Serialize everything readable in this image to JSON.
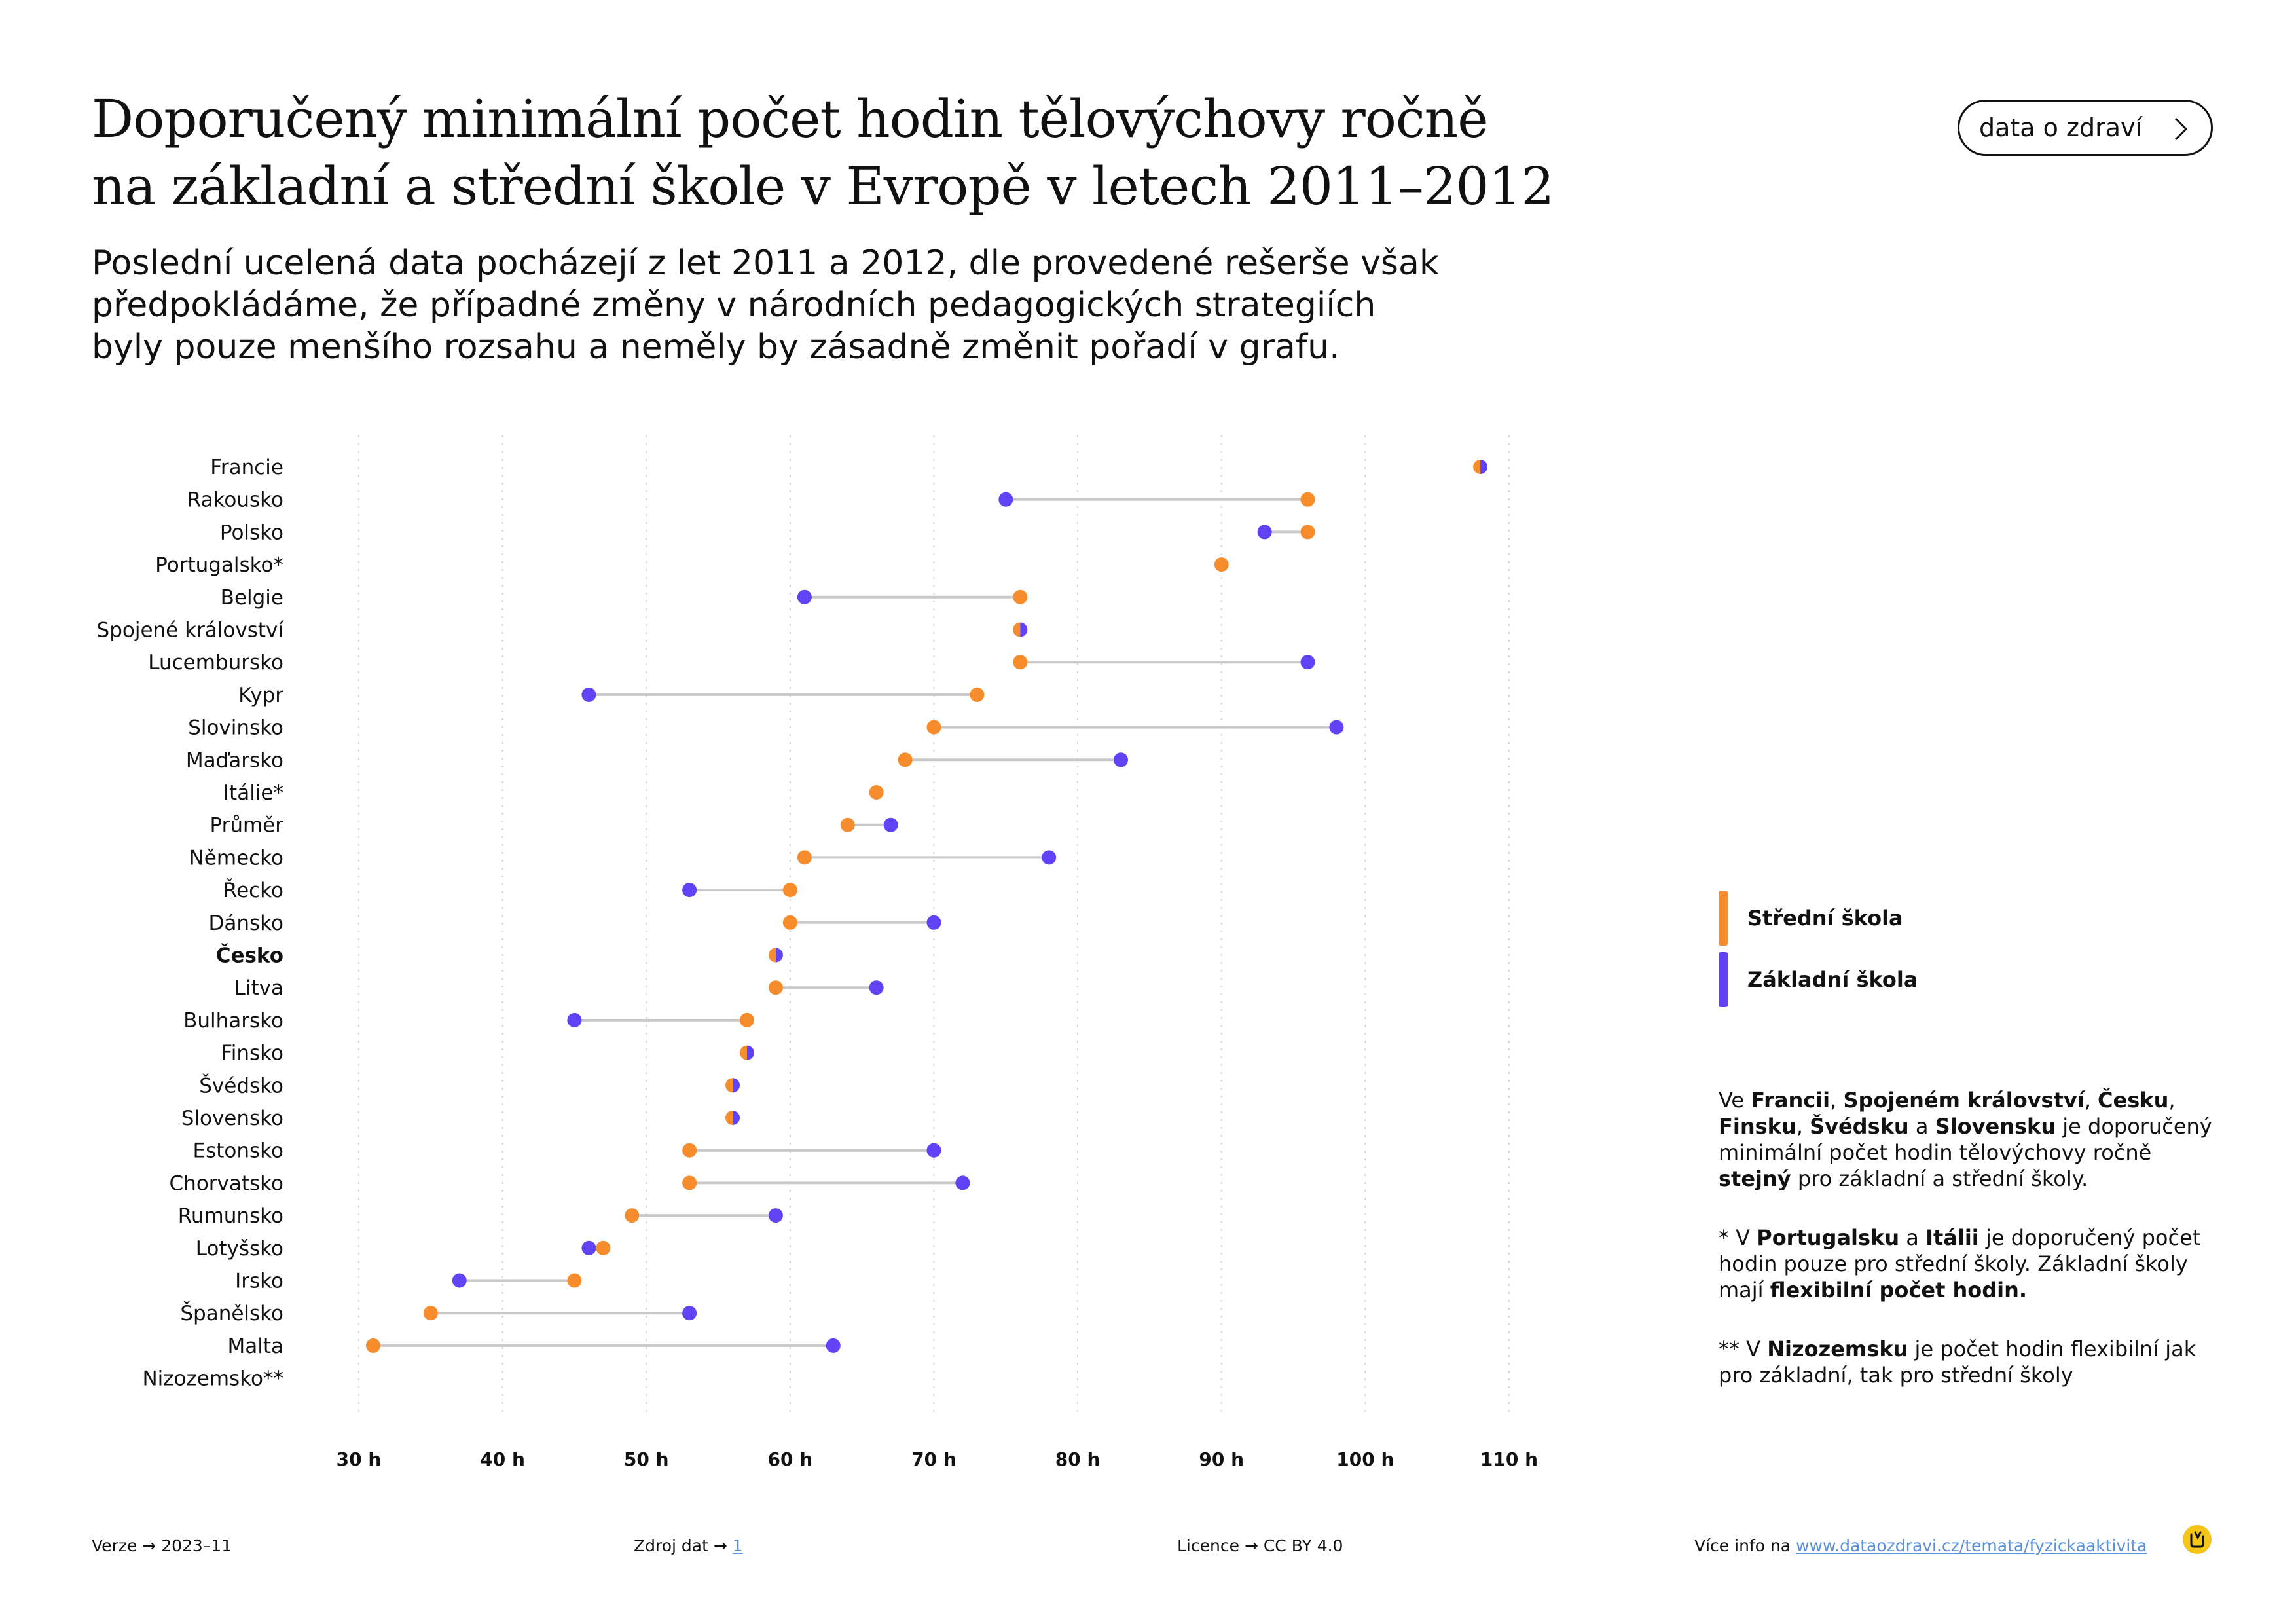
{
  "title": {
    "line1": "Doporučený minimální počet hodin tělovýchovy ročně",
    "line2": "na základní a střední škole v Evropě v letech 2011–2012"
  },
  "subtitle": {
    "line1": "Poslední ucelená data pocházejí z let 2011 a 2012, dle provedené rešerše však",
    "line2": "předpokládáme, že případné změny v národních pedagogických strategiích",
    "line3": "byly pouze menšího rozsahu a neměly by zásadně změnit pořadí v grafu."
  },
  "button": {
    "label": "data o zdraví",
    "icon": "chevron-right-icon"
  },
  "legend": {
    "items": [
      {
        "label": "Střední škola",
        "color": "#f78c2c"
      },
      {
        "label": "Základní škola",
        "color": "#6142f5"
      }
    ]
  },
  "notes": {
    "note1": {
      "p1": "Ve ",
      "b1": "Francii",
      "p2": ", ",
      "b2": "Spojeném království",
      "p3": ", ",
      "b3": "Česku",
      "p4": ", ",
      "b4": "Finsku",
      "p5": ", ",
      "b5": "Švédsku",
      "p6": " a ",
      "b6": "Slovensku",
      "p7": " je doporučený minimální počet hodin tělovýchovy ročně ",
      "b7": "stejný",
      "p8": " pro základní a střední školy."
    },
    "note2": {
      "p1": "* V ",
      "b1": "Portugalsku",
      "p2": " a ",
      "b2": "Itálii",
      "p3": " je doporučený počet hodin pouze pro střední školy. Základní školy mají ",
      "b3": "flexibilní počet hodin."
    },
    "note3": {
      "p1": "** V ",
      "b1": "Nizozemsku",
      "p2": " je počet hodin flexibilní jak pro základní, tak pro střední školy"
    }
  },
  "footer": {
    "version_label": "Verze",
    "version_value": "2023–11",
    "source_label": "Zdroj dat",
    "source_value": "1",
    "license_label": "Licence",
    "license_value": "CC BY 4.0",
    "more_label": "Více info na",
    "more_link": "www.dataozdravi.cz/temata/fyzickaaktivita",
    "arrow": "→"
  },
  "chart_data": {
    "type": "dumbbell",
    "x_tick_labels": [
      "30 h",
      "40 h",
      "50 h",
      "60 h",
      "70 h",
      "80 h",
      "90 h",
      "100 h",
      "110 h"
    ],
    "x_ticks": [
      30,
      40,
      50,
      60,
      70,
      80,
      90,
      100,
      110
    ],
    "xlim": [
      30,
      110
    ],
    "grid": "vertical dotted",
    "colors": {
      "secondary": "#f78c2c",
      "primary": "#6142f5",
      "connector": "#c9c9c9"
    },
    "series": [
      {
        "key": "secondary",
        "name": "Střední škola"
      },
      {
        "key": "primary",
        "name": "Základní škola"
      }
    ],
    "countries": [
      {
        "name": "Francie",
        "secondary": 108,
        "primary": 108
      },
      {
        "name": "Rakousko",
        "secondary": 96,
        "primary": 75
      },
      {
        "name": "Polsko",
        "secondary": 96,
        "primary": 93
      },
      {
        "name": "Portugalsko*",
        "secondary": 90,
        "primary": null
      },
      {
        "name": "Belgie",
        "secondary": 76,
        "primary": 61
      },
      {
        "name": "Spojené království",
        "secondary": 76,
        "primary": 76
      },
      {
        "name": "Lucembursko",
        "secondary": 76,
        "primary": 96
      },
      {
        "name": "Kypr",
        "secondary": 73,
        "primary": 46
      },
      {
        "name": "Slovinsko",
        "secondary": 70,
        "primary": 98
      },
      {
        "name": "Maďarsko",
        "secondary": 68,
        "primary": 83
      },
      {
        "name": "Itálie*",
        "secondary": 66,
        "primary": null
      },
      {
        "name": "Průměr",
        "secondary": 64,
        "primary": 67
      },
      {
        "name": "Německo",
        "secondary": 61,
        "primary": 78
      },
      {
        "name": "Řecko",
        "secondary": 60,
        "primary": 53
      },
      {
        "name": "Dánsko",
        "secondary": 60,
        "primary": 70
      },
      {
        "name": "Česko",
        "secondary": 59,
        "primary": 59,
        "bold": true
      },
      {
        "name": "Litva",
        "secondary": 59,
        "primary": 66
      },
      {
        "name": "Bulharsko",
        "secondary": 57,
        "primary": 45
      },
      {
        "name": "Finsko",
        "secondary": 57,
        "primary": 57
      },
      {
        "name": "Švédsko",
        "secondary": 56,
        "primary": 56
      },
      {
        "name": "Slovensko",
        "secondary": 56,
        "primary": 56
      },
      {
        "name": "Estonsko",
        "secondary": 53,
        "primary": 70
      },
      {
        "name": "Chorvatsko",
        "secondary": 53,
        "primary": 72
      },
      {
        "name": "Rumunsko",
        "secondary": 49,
        "primary": 59
      },
      {
        "name": "Lotyšsko",
        "secondary": 47,
        "primary": 46
      },
      {
        "name": "Irsko",
        "secondary": 45,
        "primary": 37
      },
      {
        "name": "Španělsko",
        "secondary": 35,
        "primary": 53
      },
      {
        "name": "Malta",
        "secondary": 31,
        "primary": 63
      },
      {
        "name": "Nizozemsko**",
        "secondary": null,
        "primary": null
      }
    ]
  }
}
